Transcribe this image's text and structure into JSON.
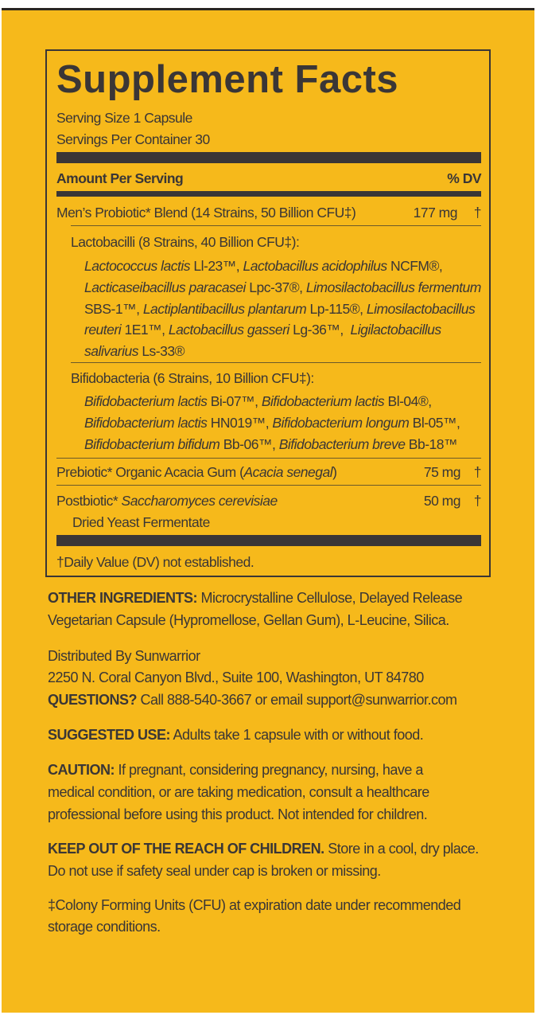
{
  "title": "Supplement Facts",
  "serving_size": "Serving Size 1 Capsule",
  "servings_per_container": "Servings Per Container 30",
  "amount_per_serving": "Amount Per Serving",
  "dv_header": "% DV",
  "blend": {
    "name": "Men’s Probiotic* Blend (14 Strains, 50 Billion CFU‡)",
    "amount": "177 mg",
    "dv": "†"
  },
  "lacto": {
    "header": "Lactobacilli (8 Strains, 40 Billion CFU‡):",
    "lines": [
      [
        [
          "i",
          "Lactococcus lactis"
        ],
        [
          "n",
          " Ll-23™, "
        ],
        [
          "i",
          "Lactobacillus acidophilus"
        ],
        [
          "n",
          " NCFM®,"
        ]
      ],
      [
        [
          "i",
          "Lacticaseibacillus paracasei"
        ],
        [
          "n",
          " Lpc-37®, "
        ],
        [
          "i",
          "Limosilactobacillus fermentum"
        ]
      ],
      [
        [
          "n",
          "SBS-1™, "
        ],
        [
          "i",
          "Lactiplantibacillus plantarum"
        ],
        [
          "n",
          " Lp-115®, "
        ],
        [
          "i",
          "Limosilactobacillus"
        ]
      ],
      [
        [
          "i",
          "reuteri"
        ],
        [
          "n",
          " 1E1™, "
        ],
        [
          "i",
          "Lactobacillus gasseri"
        ],
        [
          "n",
          " Lg-36™,  "
        ],
        [
          "i",
          "Ligilactobacillus"
        ]
      ],
      [
        [
          "i",
          "salivarius"
        ],
        [
          "n",
          " Ls-33®"
        ]
      ]
    ]
  },
  "bifido": {
    "header": "Bifidobacteria (6 Strains, 10 Billion CFU‡):",
    "lines": [
      [
        [
          "i",
          "Bifidobacterium lactis"
        ],
        [
          "n",
          " Bi-07™, "
        ],
        [
          "i",
          "Bifidobacterium lactis"
        ],
        [
          "n",
          " Bl-04®,"
        ]
      ],
      [
        [
          "i",
          "Bifidobacterium lactis"
        ],
        [
          "n",
          " HN019™, "
        ],
        [
          "i",
          "Bifidobacterium longum"
        ],
        [
          "n",
          " Bl-05™,"
        ]
      ],
      [
        [
          "i",
          "Bifidobacterium bifidum"
        ],
        [
          "n",
          " Bb-06™, "
        ],
        [
          "i",
          "Bifidobacterium breve"
        ],
        [
          "n",
          " Bb-18™"
        ]
      ]
    ]
  },
  "prebiotic": {
    "pre": "Prebiotic* Organic Acacia Gum (",
    "italic": "Acacia senegal",
    "post": ")",
    "amount": "75 mg",
    "dv": "†"
  },
  "postbiotic": {
    "pre": "Postbiotic* ",
    "italic": "Saccharomyces cerevisiae",
    "line2": "Dried Yeast Fermentate",
    "amount": "50 mg",
    "dv": "†"
  },
  "footnote": "†Daily Value (DV) not established.",
  "other_ingredients": {
    "label": "OTHER INGREDIENTS:",
    "line1": " Microcrystalline Cellulose, Delayed Release",
    "line2": "Vegetarian Capsule (Hypromellose, Gellan Gum), L-Leucine, Silica."
  },
  "distributor": {
    "line1": "Distributed By Sunwarrior",
    "line2": "2250 N. Coral Canyon Blvd., Suite 100, Washington, UT 84780",
    "q_label": "QUESTIONS?",
    "q_text": " Call 888-540-3667 or email support@sunwarrior.com"
  },
  "suggested_use": {
    "label": "SUGGESTED USE:",
    "text": " Adults take 1 capsule with or without food."
  },
  "caution": {
    "label": "CAUTION:",
    "line1": " If pregnant, considering pregnancy, nursing, have a",
    "line2": "medical condition, or are taking medication, consult a healthcare",
    "line3": "professional before using this product. Not intended for children."
  },
  "keep_out": {
    "label": "KEEP OUT OF THE REACH OF CHILDREN.",
    "line1": " Store in a cool, dry place.",
    "line2": "Do not use if safety seal under cap is broken or missing."
  },
  "cfu_note": {
    "line1": "‡Colony Forming Units (CFU) at expiration date under recommended",
    "line2": "storage conditions."
  },
  "colors": {
    "background": "#f6b91b",
    "text": "#3a3636"
  }
}
